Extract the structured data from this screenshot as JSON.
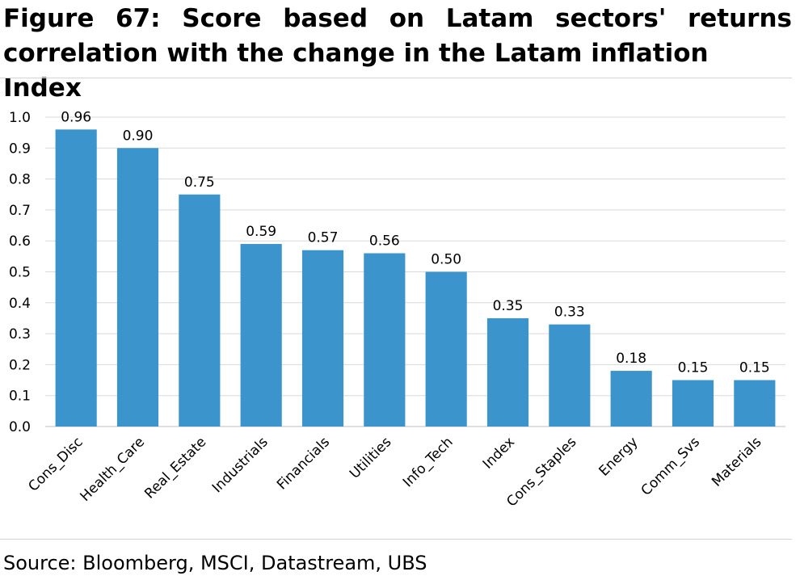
{
  "figure": {
    "title_line1": "Figure 67: Score based on Latam sectors' returns",
    "title_line2": "correlation with the change in the Latam inflation Index",
    "source": "Source: Bloomberg, MSCI, Datastream, UBS"
  },
  "chart_data": {
    "type": "bar",
    "title": "",
    "xlabel": "",
    "ylabel": "",
    "ylim": [
      0.0,
      1.0
    ],
    "yticks": [
      "0.0",
      "0.1",
      "0.2",
      "0.3",
      "0.4",
      "0.5",
      "0.6",
      "0.7",
      "0.8",
      "0.9",
      "1.0"
    ],
    "grid": true,
    "legend": "none",
    "bar_color": "#3b94cc",
    "categories": [
      "Cons_Disc",
      "Health_Care",
      "Real_Estate",
      "Industrials",
      "Financials",
      "Utilities",
      "Info_Tech",
      "Index",
      "Cons_Staples",
      "Energy",
      "Comm_Svs",
      "Materials"
    ],
    "values": [
      0.96,
      0.9,
      0.75,
      0.59,
      0.57,
      0.56,
      0.5,
      0.35,
      0.33,
      0.18,
      0.15,
      0.15
    ],
    "value_labels": [
      "0.96",
      "0.90",
      "0.75",
      "0.59",
      "0.57",
      "0.56",
      "0.50",
      "0.35",
      "0.33",
      "0.18",
      "0.15",
      "0.15"
    ]
  }
}
